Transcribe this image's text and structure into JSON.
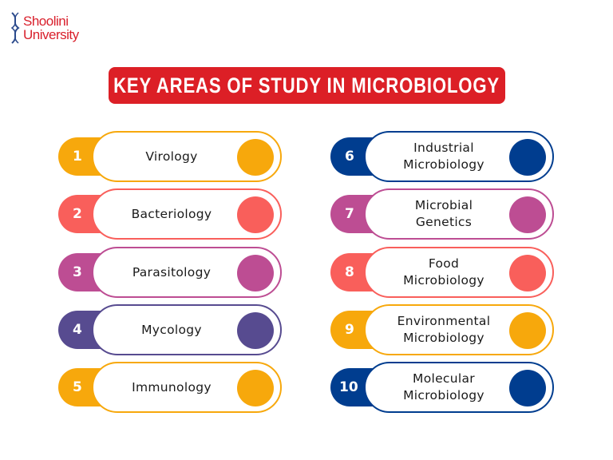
{
  "logo": {
    "line1": "Shoolini",
    "line2": "University",
    "color": "#d9202c",
    "icon": "dna-icon"
  },
  "title": {
    "text": "KEY AREAS OF STUDY IN MICROBIOLOGY",
    "background": "#dc1f26"
  },
  "colors": {
    "orange": "#f7a80c",
    "coral": "#f95f5b",
    "magenta": "#bd4d93",
    "purple": "#574b90",
    "navy": "#003d8f"
  },
  "items": [
    {
      "number": "1",
      "label": "Virology",
      "color": "#f7a80c"
    },
    {
      "number": "2",
      "label": "Bacteriology",
      "color": "#f95f5b"
    },
    {
      "number": "3",
      "label": "Parasitology",
      "color": "#bd4d93"
    },
    {
      "number": "4",
      "label": "Mycology",
      "color": "#574b90"
    },
    {
      "number": "5",
      "label": "Immunology",
      "color": "#f7a80c"
    },
    {
      "number": "6",
      "label": "Industrial Microbiology",
      "line1": "Industrial",
      "line2": "Microbiology",
      "color": "#003d8f"
    },
    {
      "number": "7",
      "label": "Microbial Genetics",
      "line1": "Microbial",
      "line2": "Genetics",
      "color": "#bd4d93"
    },
    {
      "number": "8",
      "label": "Food Microbiology",
      "line1": "Food",
      "line2": "Microbiology",
      "color": "#f95f5b"
    },
    {
      "number": "9",
      "label": "Environmental Microbiology",
      "line1": "Environmental",
      "line2": "Microbiology",
      "color": "#f7a80c"
    },
    {
      "number": "10",
      "label": "Molecular Microbiology",
      "line1": "Molecular",
      "line2": "Microbiology",
      "color": "#003d8f"
    }
  ]
}
